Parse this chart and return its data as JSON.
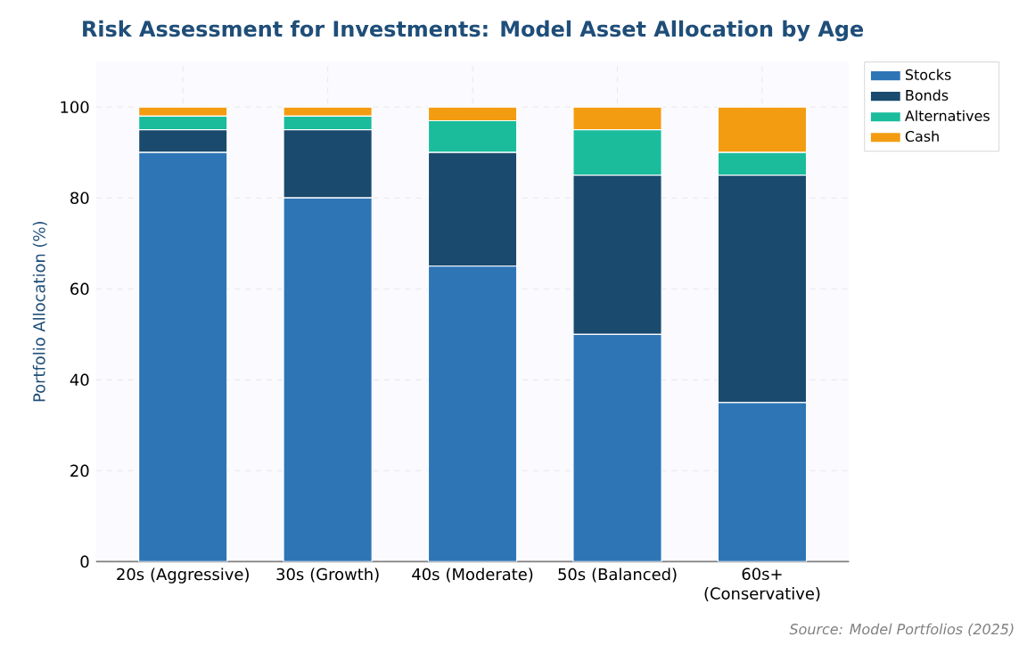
{
  "chart_data": {
    "type": "bar",
    "title": "Risk Assessment for Investments: Model Asset Allocation by Age",
    "ylabel": "Portfolio Allocation (%)",
    "categories": [
      "20s (Aggressive)",
      "30s (Growth)",
      "40s (Moderate)",
      "50s (Balanced)",
      "60s+ (Conservative)"
    ],
    "stacked": true,
    "series": [
      {
        "name": "Stocks",
        "color": "#2e75b6",
        "values": [
          90,
          80,
          65,
          50,
          35
        ]
      },
      {
        "name": "Bonds",
        "color": "#1a4a6e",
        "values": [
          5,
          15,
          25,
          35,
          50
        ]
      },
      {
        "name": "Alternatives",
        "color": "#1abc9c",
        "values": [
          3,
          3,
          7,
          10,
          5
        ]
      },
      {
        "name": "Cash",
        "color": "#f39c12",
        "values": [
          2,
          2,
          3,
          5,
          10
        ]
      }
    ],
    "ylim": [
      0,
      110
    ],
    "yticks": [
      0,
      20,
      40,
      60,
      80,
      100
    ],
    "grid": true,
    "legend": "right",
    "annotations": [
      "Source: Model Portfolios (2025)"
    ]
  }
}
